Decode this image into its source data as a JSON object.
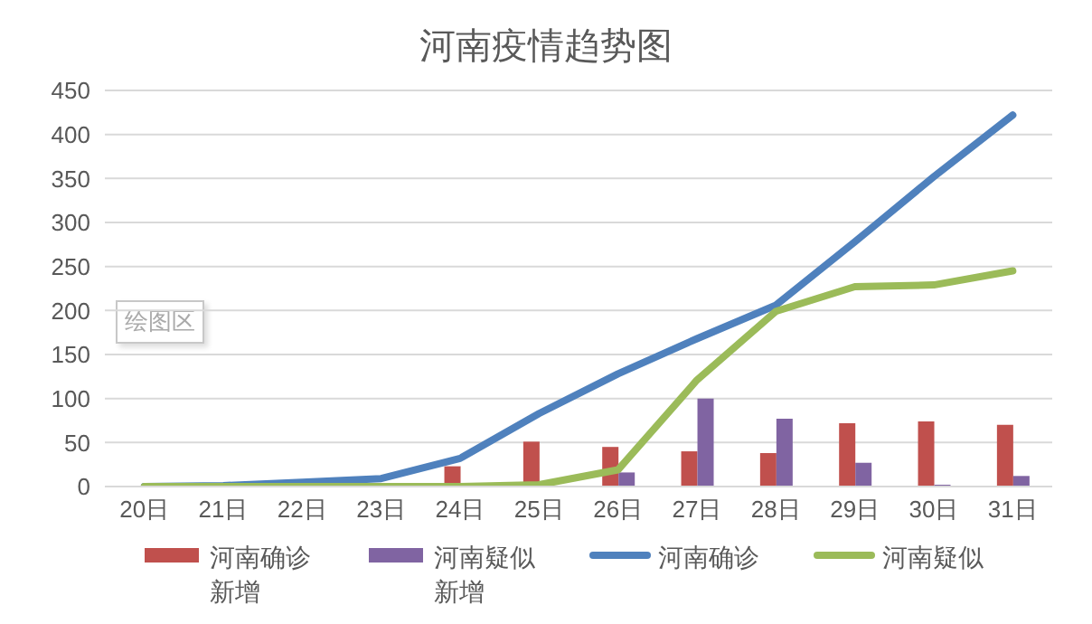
{
  "chart_data": {
    "type": "bar",
    "title": "河南疫情趋势图",
    "categories": [
      "20日",
      "21日",
      "22日",
      "23日",
      "24日",
      "25日",
      "26日",
      "27日",
      "28日",
      "29日",
      "30日",
      "31日"
    ],
    "series": [
      {
        "name": "河南确诊新增",
        "color": "#c0504d",
        "values": [
          null,
          null,
          null,
          null,
          23,
          51,
          45,
          40,
          38,
          72,
          74,
          70
        ]
      },
      {
        "name": "河南疑似新增",
        "color": "#8064a2",
        "values": [
          null,
          null,
          null,
          null,
          null,
          null,
          16,
          100,
          77,
          27,
          2,
          12
        ]
      },
      {
        "name": "河南确诊",
        "type": "line",
        "color": "#4f81bd",
        "values": [
          0,
          1,
          5,
          9,
          32,
          83,
          128,
          168,
          206,
          278,
          352,
          422
        ]
      },
      {
        "name": "河南疑似",
        "type": "line",
        "color": "#9bbb59",
        "values": [
          0,
          0,
          0,
          0,
          0,
          2,
          19,
          121,
          199,
          227,
          229,
          245
        ]
      }
    ],
    "ylim": [
      0,
      450
    ],
    "yticks": [
      0,
      50,
      100,
      150,
      200,
      250,
      300,
      350,
      400,
      450
    ],
    "grid": "y",
    "legend": "bottom",
    "marker": "none",
    "line_style": "solid",
    "annotations": [
      "绘图区"
    ]
  }
}
